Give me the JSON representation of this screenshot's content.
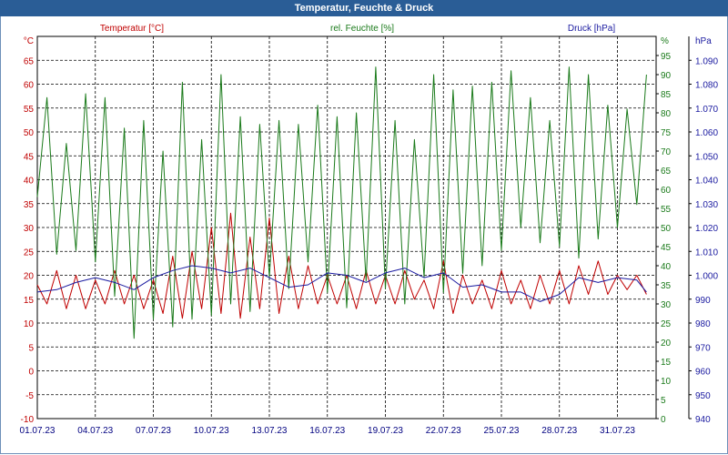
{
  "window": {
    "title": "Temperatur, Feuchte & Druck"
  },
  "chart_data": {
    "type": "line",
    "title": "Temperatur, Feuchte & Druck",
    "grid": true,
    "x": {
      "labels": [
        "01.07.23",
        "04.07.23",
        "07.07.23",
        "10.07.23",
        "13.07.23",
        "16.07.23",
        "19.07.23",
        "22.07.23",
        "25.07.23",
        "28.07.23",
        "31.07.23"
      ],
      "range_days": [
        0,
        32
      ]
    },
    "axes": {
      "temperature": {
        "label": "Temperatur [°C]",
        "unit": "°C",
        "ylim": [
          -10,
          70
        ],
        "ticks": [
          -10,
          -5,
          0,
          5,
          10,
          15,
          20,
          25,
          30,
          35,
          40,
          45,
          50,
          55,
          60,
          65
        ],
        "color": "#c00000"
      },
      "humidity": {
        "label": "rel. Feuchte [%]",
        "unit": "%",
        "ylim": [
          0,
          100
        ],
        "ticks": [
          0,
          5,
          10,
          15,
          20,
          25,
          30,
          35,
          40,
          45,
          50,
          55,
          60,
          65,
          70,
          75,
          80,
          85,
          90,
          95
        ],
        "color": "#1a7a1a"
      },
      "pressure": {
        "label": "Druck [hPa]",
        "unit": "hPa",
        "ylim": [
          940,
          1100
        ],
        "ticks": [
          "940",
          "950",
          "960",
          "970",
          "980",
          "990",
          "1.000",
          "1.010",
          "1.020",
          "1.030",
          "1.040",
          "1.050",
          "1.060",
          "1.070",
          "1.080",
          "1.090"
        ],
        "color": "#1a1aa0"
      }
    },
    "series": [
      {
        "name": "Temperatur [°C]",
        "axis": "temperature",
        "color": "#c00000",
        "x": [
          0,
          0.5,
          1,
          1.5,
          2,
          2.5,
          3,
          3.5,
          4,
          4.5,
          5,
          5.5,
          6,
          6.5,
          7,
          7.5,
          8,
          8.5,
          9,
          9.5,
          10,
          10.5,
          11,
          11.5,
          12,
          12.5,
          13,
          13.5,
          14,
          14.5,
          15,
          15.5,
          16,
          16.5,
          17,
          17.5,
          18,
          18.5,
          19,
          19.5,
          20,
          20.5,
          21,
          21.5,
          22,
          22.5,
          23,
          23.5,
          24,
          24.5,
          25,
          25.5,
          26,
          26.5,
          27,
          27.5,
          28,
          28.5,
          29,
          29.5,
          30,
          30.5,
          31,
          31.5
        ],
        "values": [
          18,
          14,
          21,
          13,
          20,
          13,
          19,
          14,
          21,
          14,
          20,
          13,
          19,
          12,
          24,
          11,
          25,
          13,
          30,
          12,
          33,
          11,
          28,
          13,
          32,
          12,
          24,
          13,
          22,
          14,
          20,
          14,
          20,
          13,
          21,
          14,
          20,
          14,
          21,
          15,
          19,
          13,
          23,
          12,
          20,
          14,
          19,
          13,
          21,
          14,
          19,
          13,
          20,
          14,
          21,
          14,
          22,
          16,
          23,
          16,
          20,
          17,
          20,
          16
        ]
      },
      {
        "name": "rel. Feuchte [%]",
        "axis": "humidity",
        "color": "#1a7a1a",
        "x": [
          0,
          0.5,
          1,
          1.5,
          2,
          2.5,
          3,
          3.5,
          4,
          4.5,
          5,
          5.5,
          6,
          6.5,
          7,
          7.5,
          8,
          8.5,
          9,
          9.5,
          10,
          10.5,
          11,
          11.5,
          12,
          12.5,
          13,
          13.5,
          14,
          14.5,
          15,
          15.5,
          16,
          16.5,
          17,
          17.5,
          18,
          18.5,
          19,
          19.5,
          20,
          20.5,
          21,
          21.5,
          22,
          22.5,
          23,
          23.5,
          24,
          24.5,
          25,
          25.5,
          26,
          26.5,
          27,
          27.5,
          28,
          28.5,
          29,
          29.5,
          30,
          30.5,
          31,
          31.5
        ],
        "values": [
          58,
          84,
          43,
          72,
          44,
          85,
          41,
          84,
          32,
          76,
          21,
          78,
          26,
          70,
          24,
          88,
          26,
          73,
          27,
          90,
          30,
          79,
          28,
          77,
          37,
          78,
          34,
          77,
          41,
          82,
          33,
          79,
          29,
          80,
          36,
          92,
          34,
          78,
          30,
          73,
          37,
          90,
          33,
          86,
          38,
          87,
          40,
          88,
          44,
          91,
          50,
          84,
          46,
          78,
          45,
          92,
          42,
          90,
          47,
          82,
          50,
          81,
          56,
          90
        ]
      },
      {
        "name": "Druck [hPa]",
        "axis": "pressure",
        "color": "#1a1aa0",
        "x": [
          0,
          1,
          2,
          3,
          4,
          5,
          6,
          7,
          8,
          9,
          10,
          11,
          12,
          13,
          14,
          15,
          16,
          17,
          18,
          19,
          20,
          21,
          22,
          23,
          24,
          25,
          26,
          27,
          28,
          29,
          30,
          31,
          31.5
        ],
        "values": [
          993,
          994,
          997,
          999,
          997,
          994,
          999,
          1002,
          1004,
          1003,
          1001,
          1003,
          999,
          995,
          996,
          1001,
          1000,
          997,
          1001,
          1003,
          999,
          1001,
          995,
          996,
          993,
          993,
          989,
          992,
          999,
          997,
          999,
          998,
          993
        ]
      }
    ]
  }
}
